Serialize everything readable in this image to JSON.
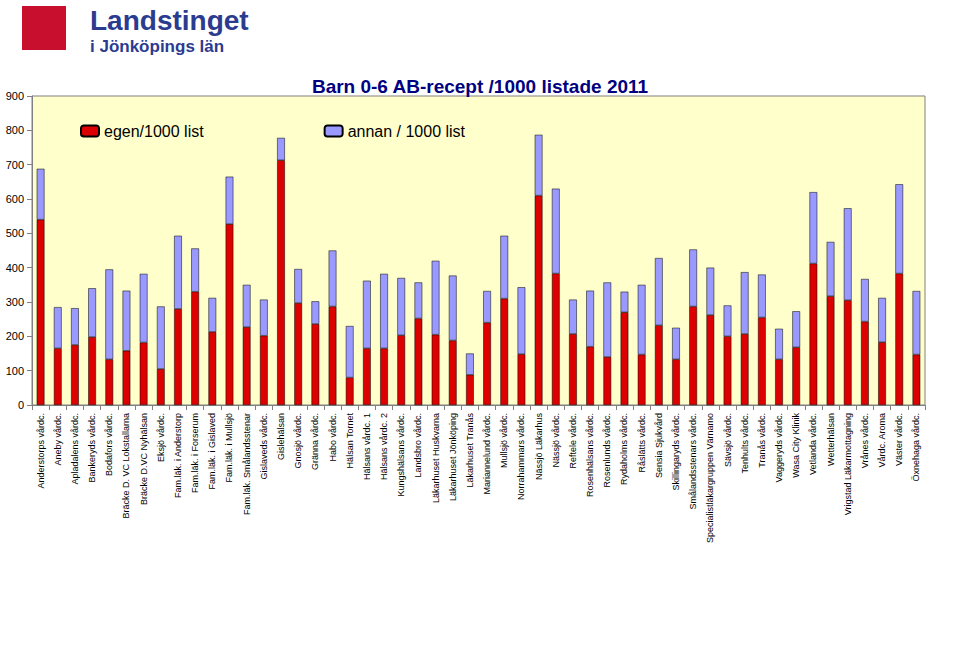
{
  "chart_data": {
    "type": "bar",
    "title": "Barn 0-6 AB-recept /1000 listade 2011",
    "annotations": [
      "Landstinget",
      "i Jönköpings län"
    ],
    "categories": [
      "Anderstorps vårdc.",
      "Aneby vårdc.",
      "Apladalens vårdc.",
      "Bankeryds vårdc.",
      "Bodafors vårdc.",
      "Bräcke D. VC Lokstallarna",
      "Bräcke D.VC Nyhälsan",
      "Eksjö vårdc.",
      "Fam.läk. i Anderstorp",
      "Fam.läk. i Forserum",
      "Fam.läk. i Gislaved",
      "Fam.läk. i Mullsjö",
      "Fam.läk. Smålandsstenar",
      "Gislaveds vårdc.",
      "Gislehälsan",
      "Gnosjö vårdc.",
      "Gränna vårdc.",
      "Habo vårdc.",
      "Hälsan Tornet",
      "Hälsans vårdc. 1",
      "Hälsans vårdc. 2",
      "Kungshälsans vårdc.",
      "Landsbro vårdc.",
      "Läkarhuset Huskvarna",
      "Läkarhuset Jönköping",
      "Läkarhuset Tranås",
      "Mariannelund vårdc.",
      "Mullsjö vårdc.",
      "Norrahammars vårdc.",
      "Nässjö Läkarhus",
      "Nässjö vårdc.",
      "Reftele vårdc.",
      "Rosenhälsans vårdc.",
      "Rosenlunds vårdc.",
      "Rydaholms vårdc.",
      "Råslätts vårdc.",
      "Sensia Sjukvård",
      "Skillingaryds vårdc.",
      "Smålandsstenars vårdc.",
      "Specialistläkargruppen Värnamo",
      "Sävsjö vårdc.",
      "Tenhults vårdc.",
      "Tranås vårdc.",
      "Vaggeryds vårdc.",
      "Wasa City Klinik",
      "Vetlanda vårdc.",
      "Wetterhälsan",
      "Vrigstad Läkarmottagning",
      "Vrånes vårdc.",
      "Vårdc. Aroma",
      "Väster vårdc.",
      "Öxnehaga vårdc."
    ],
    "series": [
      {
        "name": "egen/1000 list",
        "color": "#dd0000",
        "values": [
          540,
          165,
          175,
          198,
          133,
          158,
          182,
          105,
          280,
          330,
          213,
          527,
          227,
          202,
          713,
          297,
          236,
          287,
          80,
          165,
          165,
          203,
          252,
          205,
          188,
          88,
          240,
          310,
          148,
          610,
          383,
          207,
          170,
          140,
          270,
          147,
          232,
          133,
          287,
          262,
          200,
          207,
          255,
          133,
          168,
          412,
          317,
          305,
          243,
          183,
          383,
          147
        ]
      },
      {
        "name": "annan / 1000 list",
        "color": "#9999ff",
        "values": [
          148,
          120,
          107,
          142,
          262,
          175,
          200,
          182,
          213,
          126,
          99,
          138,
          123,
          105,
          65,
          99,
          66,
          163,
          150,
          197,
          217,
          167,
          105,
          215,
          189,
          62,
          92,
          183,
          195,
          177,
          247,
          100,
          163,
          217,
          60,
          203,
          196,
          92,
          166,
          138,
          90,
          180,
          125,
          89,
          105,
          208,
          158,
          268,
          124,
          129,
          260,
          185
        ]
      }
    ],
    "stacked": true,
    "legend": "top-left",
    "grid": false,
    "ylim": [
      0,
      900
    ],
    "yticks": [
      0,
      100,
      200,
      300,
      400,
      500,
      600,
      700,
      800,
      900
    ]
  }
}
